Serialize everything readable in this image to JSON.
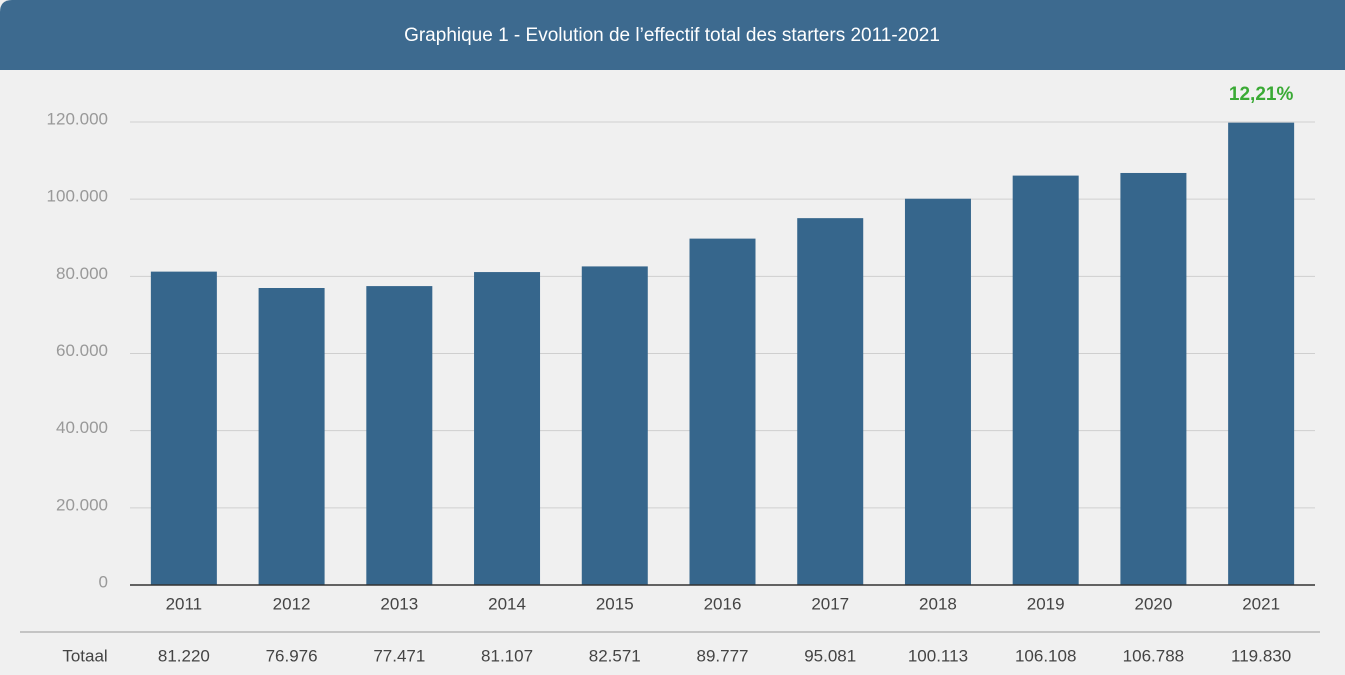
{
  "chart_data": {
    "type": "bar",
    "title": "Graphique 1 - Evolution de l’effectif total des starters 2011-2021",
    "categories": [
      "2011",
      "2012",
      "2013",
      "2014",
      "2015",
      "2016",
      "2017",
      "2018",
      "2019",
      "2020",
      "2021"
    ],
    "values": [
      81220,
      76976,
      77471,
      81107,
      82571,
      89777,
      95081,
      100113,
      106108,
      106788,
      119830
    ],
    "value_labels": [
      "81.220",
      "76.976",
      "77.471",
      "81.107",
      "82.571",
      "89.777",
      "95.081",
      "100.113",
      "106.108",
      "106.788",
      "119.830"
    ],
    "table_row_label": "Totaal",
    "annotation": "12,21%",
    "color": "#36668c",
    "ylim": [
      0,
      120000
    ],
    "yticks": [
      0,
      {
        "value": 20000,
        "label": "20.000"
      },
      {
        "value": 40000,
        "label": "40.000"
      },
      {
        "value": 60000,
        "label": "60.000"
      },
      {
        "value": 80000,
        "label": "80.000"
      },
      {
        "value": 100000,
        "label": "100.000"
      },
      {
        "value": 120000,
        "label": "120.000"
      }
    ],
    "grid": true
  }
}
